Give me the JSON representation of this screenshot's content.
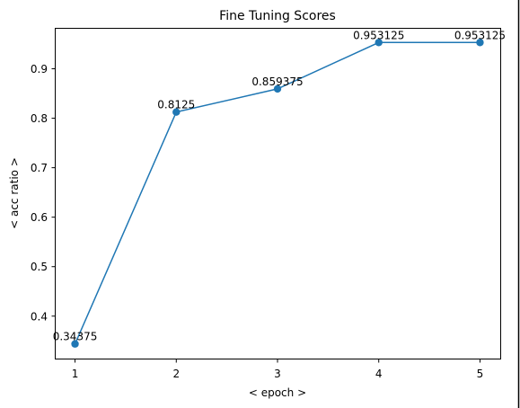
{
  "chart_data": {
    "type": "line",
    "title": "Fine Tuning Scores",
    "xlabel": "< epoch >",
    "ylabel": "< acc ratio >",
    "x": [
      1,
      2,
      3,
      4,
      5
    ],
    "xlim": [
      0.8,
      5.2
    ],
    "ylim": [
      0.3142,
      0.9827
    ],
    "xticks": [
      1,
      2,
      3,
      4,
      5
    ],
    "yticks": [
      0.4,
      0.5,
      0.6,
      0.7,
      0.8,
      0.9
    ],
    "series": [
      {
        "values": [
          0.34375,
          0.8125,
          0.859375,
          0.953125,
          0.953125
        ],
        "labels": [
          "0.34375",
          "0.8125",
          "0.859375",
          "0.953125",
          "0.953125"
        ],
        "color": "#1f77b4"
      }
    ],
    "grid": false
  }
}
